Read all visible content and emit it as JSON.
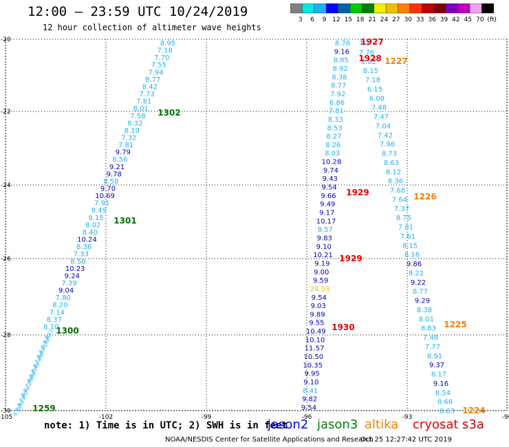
{
  "title": "12:00 — 23:59 UTC 10/24/2019",
  "subtitle": "12 hour collection of altimeter wave heights",
  "colorbar": {
    "colors": [
      "#808080",
      "#00e8e8",
      "#20b0f0",
      "#0000ff",
      "#0060b0",
      "#00c800",
      "#008000",
      "#f0f000",
      "#f0c000",
      "#ff8000",
      "#ff3000",
      "#c00000",
      "#800000",
      "#8000c0",
      "#c000c0",
      "#f0a0f0",
      "#000000"
    ],
    "labels": [
      "3",
      "6",
      "9",
      "12",
      "15",
      "18",
      "21",
      "24",
      "27",
      "30",
      "33",
      "36",
      "39",
      "42",
      "45",
      "70",
      "(ft)"
    ]
  },
  "axes": {
    "lon_ticks": [
      "-105",
      "-102",
      "-99",
      "-96",
      "-93",
      "-90"
    ],
    "lat_ticks": [
      "-20",
      "-22",
      "-24",
      "-26",
      "-28",
      "-30"
    ]
  },
  "colors": {
    "jason2": "#0000c0",
    "jason3": "#007000",
    "altika": "#f08000",
    "cryosat": "#e00000",
    "light": "#20b0f0",
    "grid": "#000000"
  },
  "tracks": [
    {
      "id": "left",
      "values": [
        "8.95",
        "7.18",
        "7.70",
        "7.55",
        "7.94",
        "8.77",
        "8.42",
        "7.73",
        "7.81",
        "8.01",
        "7.58",
        "8.32",
        "8.19",
        "7.32",
        "7.81",
        "9.79",
        "8.56",
        "9.21",
        "9.78",
        "8.58",
        "9.70",
        "10.69",
        "7.91",
        "8.49",
        "8.15",
        "8.02",
        "8.40",
        "10.24",
        "8.36",
        "7.33",
        "8.50",
        "10.23",
        "9.24",
        "7.39",
        "9.04",
        "7.80",
        "8.20",
        "7.14",
        "8.37",
        "8.10",
        "8.11",
        "8.20",
        "8.30",
        "8.21",
        "8.07",
        "7.96",
        "8.14",
        "8.40",
        "8.21",
        "8.00",
        "7.98",
        "8.22",
        "8.10",
        "7.95",
        "8.19",
        "8.30",
        "8.15"
      ]
    },
    {
      "id": "mid",
      "values": [
        "8.76",
        "9.16",
        "8.85",
        "8.92",
        "8.38",
        "8.77",
        "7.92",
        "6.86",
        "7.81",
        "8.33",
        "8.53",
        "8.27",
        "8.26",
        "8.03",
        "10.28",
        "9.74",
        "9.43",
        "9.54",
        "9.66",
        "9.49",
        "9.17",
        "10.17",
        "8.57",
        "9.83",
        "9.10",
        "10.21",
        "9.19",
        "9.00",
        "9.59",
        "24.53",
        "9.54",
        "9.03",
        "9.89",
        "9.55",
        "10.49",
        "10.10",
        "11.57",
        "10.50",
        "10.35",
        "9.95",
        "9.10",
        "8.41",
        "9.82",
        "9.54"
      ]
    },
    {
      "id": "right",
      "values": [
        "7.2",
        "7.76",
        "8.82",
        "8.15",
        "7.18",
        "6.15",
        "6.08",
        "7.48",
        "7.47",
        "7.04",
        "7.42",
        "7.98",
        "8.73",
        "8.63",
        "8.12",
        "8.36",
        "7.68",
        "7.64",
        "7.37",
        "8.75",
        "7.81",
        "7.61",
        "8.15",
        "8.16",
        "9.86",
        "8.22",
        "9.22",
        "8.77",
        "9.29",
        "8.38",
        "8.01",
        "8.83",
        "7.48",
        "7.77",
        "8.91",
        "9.37",
        "8.17",
        "9.16",
        "8.54",
        "8.66",
        "8.63"
      ]
    }
  ],
  "time_labels": [
    {
      "text": "1302",
      "sat": "jason3"
    },
    {
      "text": "1301",
      "sat": "jason3"
    },
    {
      "text": "1300",
      "sat": "jason3"
    },
    {
      "text": "1259",
      "sat": "jason3"
    },
    {
      "text": "1927",
      "sat": "cryosat"
    },
    {
      "text": "1928",
      "sat": "cryosat"
    },
    {
      "text": "1929",
      "sat": "cryosat"
    },
    {
      "text": "1929",
      "sat": "cryosat"
    },
    {
      "text": "1930",
      "sat": "cryosat"
    },
    {
      "text": "1227",
      "sat": "altika"
    },
    {
      "text": "1226",
      "sat": "altika"
    },
    {
      "text": "1225",
      "sat": "altika"
    },
    {
      "text": "1224",
      "sat": "altika"
    }
  ],
  "footer": {
    "note": "note:  1) Time is in UTC;  2) SWH is in feet",
    "sat_labels": [
      {
        "name": "jason2",
        "color": "#0000e0"
      },
      {
        "name": "jason3",
        "color": "#008000"
      },
      {
        "name": "altika",
        "color": "#f08000"
      },
      {
        "name": "cryosat",
        "color": "#e00000"
      },
      {
        "name": "s3a",
        "color": "#c00000"
      }
    ],
    "credit": "NOAA/NESDIS Center for Satellite Applications and Research",
    "timestamp": "Oct 25 12:27:42 UTC 2019"
  }
}
